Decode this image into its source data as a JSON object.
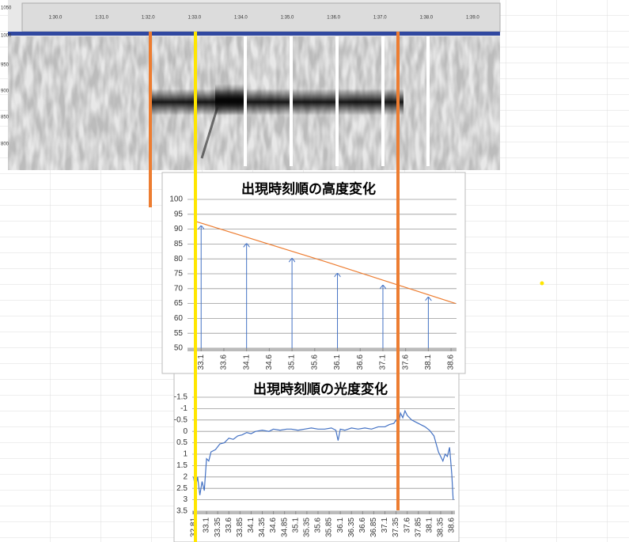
{
  "spectrogram": {
    "time_labels": [
      "1:30.0",
      "1:31.0",
      "1:32.0",
      "1:33.0",
      "1:34.0",
      "1:35.0",
      "1:36.0",
      "1:37.0",
      "1:38.0",
      "1:39.0"
    ],
    "freq_labels": [
      "1050",
      "1000",
      "950",
      "900",
      "850",
      "800"
    ]
  },
  "chart_data": [
    {
      "type": "line",
      "title": "出現時刻順の高度変化",
      "xlim": [
        32.8,
        38.72
      ],
      "xticks": [
        33.1,
        33.6,
        34.1,
        34.6,
        35.1,
        35.6,
        36.1,
        36.6,
        37.1,
        37.6,
        38.1,
        38.6
      ],
      "ylim": [
        50,
        100
      ],
      "yticks": [
        50,
        55,
        60,
        65,
        70,
        75,
        80,
        85,
        90,
        95,
        100
      ],
      "grid": true,
      "series": [
        {
          "style": "line",
          "color": "#ed7d31",
          "x": [
            33.0,
            35.85,
            38.7
          ],
          "values": [
            92.5,
            79,
            65
          ]
        },
        {
          "style": "arrow",
          "color": "#4472c4",
          "x": [
            33.1,
            34.1,
            35.1,
            36.1,
            37.1,
            38.1
          ],
          "values": [
            91,
            85,
            80,
            75,
            71,
            67
          ]
        }
      ]
    },
    {
      "type": "line",
      "title": "出現時刻順の光度変化",
      "xlim": [
        32.78,
        38.67
      ],
      "xticks": [
        32.81,
        33.1,
        33.35,
        33.6,
        33.85,
        34.1,
        34.35,
        34.6,
        34.85,
        35.1,
        35.35,
        35.6,
        35.85,
        36.1,
        36.35,
        36.6,
        36.85,
        37.1,
        37.35,
        37.6,
        37.85,
        38.1,
        38.35,
        38.6
      ],
      "ylim": [
        3.5,
        -1.5
      ],
      "yticks": [
        -1.5,
        -1,
        -0.5,
        0,
        0.5,
        1,
        1.5,
        2,
        2.5,
        3,
        3.5
      ],
      "grid": true,
      "series": [
        {
          "style": "line",
          "color": "#4472c4",
          "x": [
            32.81,
            32.85,
            32.9,
            32.95,
            33.0,
            33.05,
            33.1,
            33.15,
            33.2,
            33.3,
            33.4,
            33.5,
            33.6,
            33.7,
            33.8,
            33.9,
            34.0,
            34.1,
            34.2,
            34.35,
            34.5,
            34.6,
            34.75,
            34.9,
            35.0,
            35.15,
            35.3,
            35.45,
            35.6,
            35.75,
            35.9,
            36.0,
            36.05,
            36.1,
            36.2,
            36.35,
            36.5,
            36.65,
            36.8,
            36.95,
            37.1,
            37.2,
            37.3,
            37.35,
            37.4,
            37.45,
            37.5,
            37.55,
            37.6,
            37.7,
            37.8,
            37.9,
            38.0,
            38.1,
            38.2,
            38.3,
            38.35,
            38.4,
            38.45,
            38.5,
            38.55,
            38.6,
            38.63
          ],
          "values": [
            2.0,
            2.5,
            2.0,
            2.8,
            2.2,
            2.6,
            1.2,
            1.3,
            0.9,
            0.8,
            0.55,
            0.5,
            0.3,
            0.35,
            0.2,
            0.15,
            0.05,
            0.1,
            0.0,
            -0.05,
            0.0,
            -0.1,
            -0.05,
            -0.1,
            -0.1,
            -0.05,
            -0.1,
            -0.15,
            -0.1,
            -0.1,
            -0.15,
            -0.05,
            0.4,
            -0.1,
            -0.05,
            -0.15,
            -0.1,
            -0.15,
            -0.1,
            -0.2,
            -0.2,
            -0.3,
            -0.35,
            -0.5,
            -0.3,
            -0.8,
            -0.6,
            -0.9,
            -0.7,
            -0.5,
            -0.4,
            -0.3,
            -0.2,
            -0.05,
            0.2,
            0.9,
            1.1,
            1.3,
            1.0,
            1.1,
            0.7,
            1.9,
            3.0
          ]
        }
      ]
    }
  ]
}
